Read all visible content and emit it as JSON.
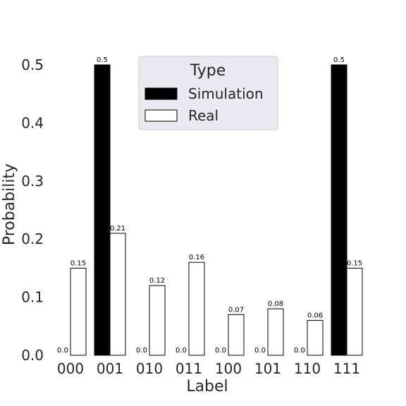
{
  "chart_data": {
    "type": "bar",
    "categories": [
      "000",
      "001",
      "010",
      "011",
      "100",
      "101",
      "110",
      "111"
    ],
    "series": [
      {
        "name": "Simulation",
        "values": [
          0.0,
          0.5,
          0.0,
          0.0,
          0.0,
          0.0,
          0.0,
          0.5
        ],
        "labels": [
          "0.0",
          "0.5",
          "0.0",
          "0.0",
          "0.0",
          "0.0",
          "0.0",
          "0.5"
        ],
        "color": "#000000"
      },
      {
        "name": "Real",
        "values": [
          0.15,
          0.21,
          0.12,
          0.16,
          0.07,
          0.08,
          0.06,
          0.15
        ],
        "labels": [
          "0.15",
          "0.21",
          "0.12",
          "0.16",
          "0.07",
          "0.08",
          "0.06",
          "0.15"
        ],
        "color": "#ffffff"
      }
    ],
    "title": "",
    "xlabel": "Label",
    "ylabel": "Probability",
    "ylim": [
      0,
      0.5
    ],
    "yticks": [
      "0.0",
      "0.1",
      "0.2",
      "0.3",
      "0.4",
      "0.5"
    ],
    "grid": false,
    "legend": {
      "title": "Type",
      "placement": "top-center",
      "background": "#eaeaf2"
    }
  }
}
